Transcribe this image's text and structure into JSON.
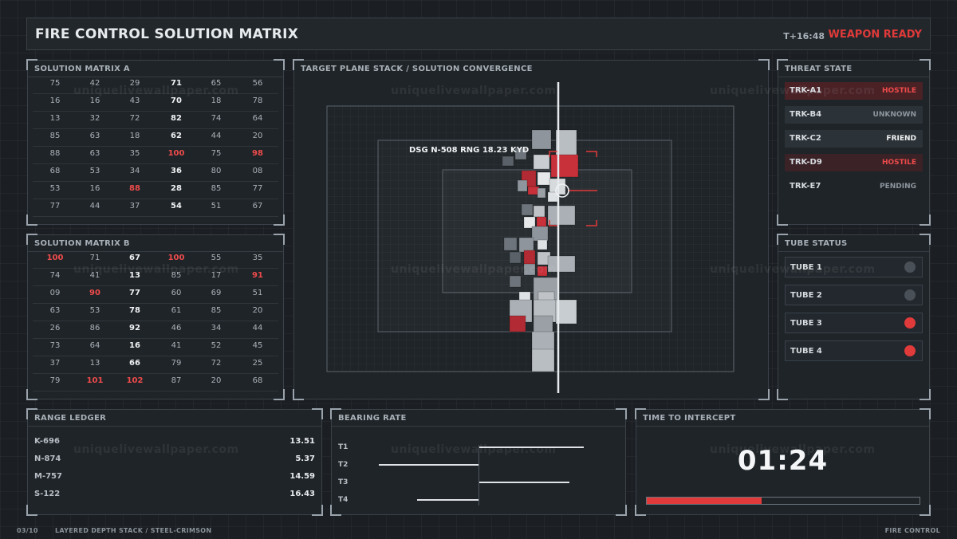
{
  "header": {
    "title": "FIRE CONTROL SOLUTION MATRIX",
    "time": "T+16:48",
    "status": "WEAPON READY"
  },
  "matrix_a": {
    "title": "SOLUTION MATRIX A",
    "rows": [
      [
        {
          "v": "75"
        },
        {
          "v": "42"
        },
        {
          "v": "29"
        },
        {
          "v": "71",
          "s": "bold"
        },
        {
          "v": "65"
        },
        {
          "v": "56"
        }
      ],
      [
        {
          "v": "16"
        },
        {
          "v": "16"
        },
        {
          "v": "43"
        },
        {
          "v": "70",
          "s": "bold"
        },
        {
          "v": "18"
        },
        {
          "v": "78"
        }
      ],
      [
        {
          "v": "13"
        },
        {
          "v": "32"
        },
        {
          "v": "72"
        },
        {
          "v": "82",
          "s": "bold"
        },
        {
          "v": "74"
        },
        {
          "v": "64"
        }
      ],
      [
        {
          "v": "85"
        },
        {
          "v": "63"
        },
        {
          "v": "18"
        },
        {
          "v": "62",
          "s": "bold"
        },
        {
          "v": "44"
        },
        {
          "v": "20"
        }
      ],
      [
        {
          "v": "88"
        },
        {
          "v": "63"
        },
        {
          "v": "35"
        },
        {
          "v": "100",
          "s": "red"
        },
        {
          "v": "75"
        },
        {
          "v": "98",
          "s": "red"
        }
      ],
      [
        {
          "v": "68"
        },
        {
          "v": "53"
        },
        {
          "v": "34"
        },
        {
          "v": "36",
          "s": "bold"
        },
        {
          "v": "80"
        },
        {
          "v": "08"
        }
      ],
      [
        {
          "v": "53"
        },
        {
          "v": "16"
        },
        {
          "v": "88",
          "s": "red"
        },
        {
          "v": "28",
          "s": "bold"
        },
        {
          "v": "85"
        },
        {
          "v": "77"
        }
      ],
      [
        {
          "v": "77"
        },
        {
          "v": "44"
        },
        {
          "v": "37"
        },
        {
          "v": "54",
          "s": "bold"
        },
        {
          "v": "51"
        },
        {
          "v": "67"
        }
      ]
    ]
  },
  "matrix_b": {
    "title": "SOLUTION MATRIX B",
    "rows": [
      [
        {
          "v": "100",
          "s": "red"
        },
        {
          "v": "71"
        },
        {
          "v": "67",
          "s": "bold"
        },
        {
          "v": "100",
          "s": "red"
        },
        {
          "v": "55"
        },
        {
          "v": "35"
        }
      ],
      [
        {
          "v": "74"
        },
        {
          "v": "41"
        },
        {
          "v": "13",
          "s": "bold"
        },
        {
          "v": "85"
        },
        {
          "v": "17"
        },
        {
          "v": "91",
          "s": "red"
        }
      ],
      [
        {
          "v": "09"
        },
        {
          "v": "90",
          "s": "red"
        },
        {
          "v": "77",
          "s": "bold"
        },
        {
          "v": "60"
        },
        {
          "v": "69"
        },
        {
          "v": "51"
        }
      ],
      [
        {
          "v": "63"
        },
        {
          "v": "53"
        },
        {
          "v": "78",
          "s": "bold"
        },
        {
          "v": "61"
        },
        {
          "v": "85"
        },
        {
          "v": "20"
        }
      ],
      [
        {
          "v": "26"
        },
        {
          "v": "86"
        },
        {
          "v": "92",
          "s": "bold"
        },
        {
          "v": "46"
        },
        {
          "v": "34"
        },
        {
          "v": "44"
        }
      ],
      [
        {
          "v": "73"
        },
        {
          "v": "64"
        },
        {
          "v": "16",
          "s": "bold"
        },
        {
          "v": "41"
        },
        {
          "v": "52"
        },
        {
          "v": "45"
        }
      ],
      [
        {
          "v": "37"
        },
        {
          "v": "13"
        },
        {
          "v": "66",
          "s": "bold"
        },
        {
          "v": "79"
        },
        {
          "v": "72"
        },
        {
          "v": "25"
        }
      ],
      [
        {
          "v": "79"
        },
        {
          "v": "101",
          "s": "red"
        },
        {
          "v": "102",
          "s": "red"
        },
        {
          "v": "87"
        },
        {
          "v": "20"
        },
        {
          "v": "68"
        }
      ]
    ]
  },
  "target_plane": {
    "title": "TARGET PLANE STACK / SOLUTION CONVERGENCE",
    "designation": "DSG N-508  RNG 18.23 KYD"
  },
  "threat_state": {
    "title": "THREAT STATE",
    "rows": [
      {
        "id": "TRK-A1",
        "status": "HOSTILE",
        "color": "#ef4b4b",
        "bg": "#4a2226"
      },
      {
        "id": "TRK-B4",
        "status": "UNKNOWN",
        "color": "#8d959d",
        "bg": "#2c3338"
      },
      {
        "id": "TRK-C2",
        "status": "FRIEND",
        "color": "#f0f2f4",
        "bg": "#2c3338"
      },
      {
        "id": "TRK-D9",
        "status": "HOSTILE",
        "color": "#ef4b4b",
        "bg": "#3a2226"
      },
      {
        "id": "TRK-E7",
        "status": "PENDING",
        "color": "#8d959d",
        "bg": "#1f2428"
      }
    ]
  },
  "tube_status": {
    "title": "TUBE STATUS",
    "tubes": [
      {
        "label": "TUBE 1",
        "color": "#4a5057"
      },
      {
        "label": "TUBE 2",
        "color": "#4a5057"
      },
      {
        "label": "TUBE 3",
        "color": "#e03a3a"
      },
      {
        "label": "TUBE 4",
        "color": "#e03a3a"
      }
    ]
  },
  "range_ledger": {
    "title": "RANGE LEDGER",
    "rows": [
      {
        "key": "K-696",
        "value": "13.51"
      },
      {
        "key": "N-874",
        "value": "5.37"
      },
      {
        "key": "M-757",
        "value": "14.59"
      },
      {
        "key": "S-122",
        "value": "16.43"
      }
    ]
  },
  "bearing_rate": {
    "title": "BEARING RATE",
    "rows": [
      {
        "label": "T1",
        "rate": 0.6
      },
      {
        "label": "T2",
        "rate": -0.57
      },
      {
        "label": "T3",
        "rate": 0.52
      },
      {
        "label": "T4",
        "rate": -0.35
      }
    ]
  },
  "intercept": {
    "title": "TIME TO INTERCEPT",
    "time": "01:24",
    "progress": 0.42
  },
  "footer": {
    "page": "03/10",
    "caption": "LAYERED DEPTH STACK / STEEL-CRIMSON",
    "right": "FIRE CONTROL"
  },
  "watermark": "uniquelivewallpaper.com"
}
